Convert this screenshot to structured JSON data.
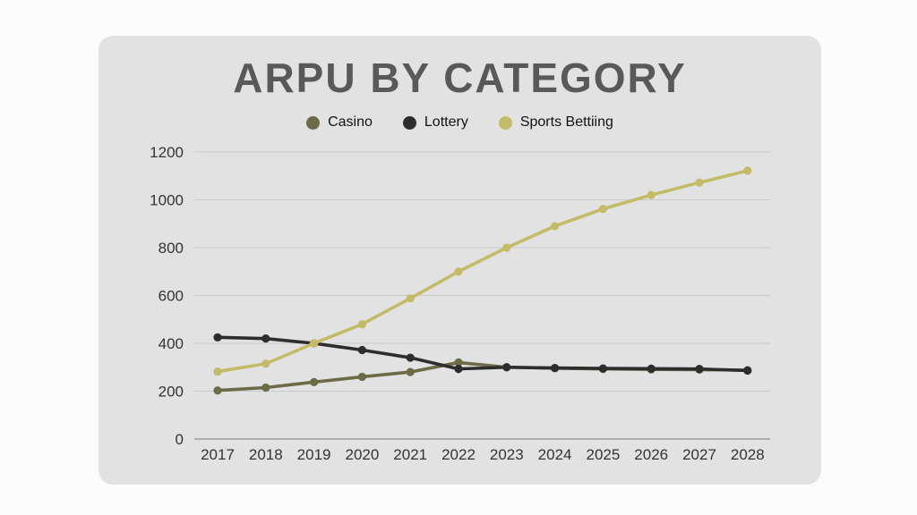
{
  "header": {
    "title": "ARPU BY CATEGORY"
  },
  "colors": {
    "page_background": "#fcfcfc",
    "card_background": "#e2e2e2",
    "title_text": "#595959",
    "gridline": "#c9c9c9",
    "axis_line": "#9b9b9b",
    "tick_text": "#333333"
  },
  "chart_data": {
    "type": "line",
    "title": "ARPU BY CATEGORY",
    "xlabel": "",
    "ylabel": "",
    "x": [
      2017,
      2018,
      2019,
      2020,
      2021,
      2022,
      2023,
      2024,
      2025,
      2026,
      2027,
      2028
    ],
    "series": [
      {
        "name": "Casino",
        "color": "#6c6a47",
        "values": [
          203,
          215,
          238,
          260,
          280,
          320,
          300,
          296,
          293,
          291,
          290,
          288
        ]
      },
      {
        "name": "Lottery",
        "color": "#2d2d2d",
        "values": [
          425,
          420,
          400,
          372,
          340,
          293,
          300,
          297,
          295,
          294,
          293,
          286
        ]
      },
      {
        "name": "Sports Bettiing",
        "color": "#c3bb68",
        "values": [
          282,
          315,
          400,
          480,
          588,
          700,
          800,
          890,
          962,
          1020,
          1072,
          1122
        ]
      }
    ],
    "ylim": [
      0,
      1200
    ],
    "ytick_step": 200,
    "grid": true,
    "legend_position": "top"
  }
}
